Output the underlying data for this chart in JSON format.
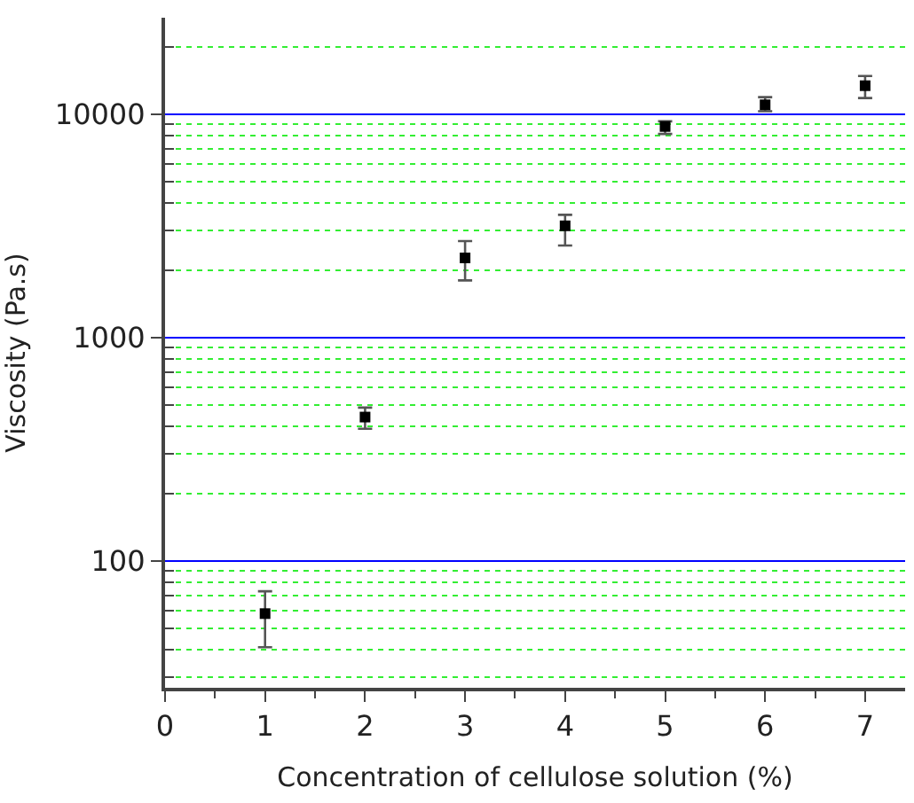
{
  "chart_data": {
    "type": "scatter",
    "xlabel": "Concentration of cellulose solution (%)",
    "ylabel": "Viscosity (Pa.s)",
    "x": [
      1,
      2,
      3,
      4,
      5,
      6,
      7
    ],
    "series": [
      {
        "color": "#000000",
        "values": [
          58,
          440,
          2270,
          3160,
          8800,
          11000,
          13400
        ],
        "errors": [
          [
            41,
            73
          ],
          [
            390,
            485
          ],
          [
            1800,
            2700
          ],
          [
            2580,
            3540
          ],
          [
            8150,
            9280
          ],
          [
            10300,
            11900
          ],
          [
            11800,
            14800
          ]
        ]
      }
    ],
    "xlim": [
      0,
      7.4
    ],
    "xticks": [
      0,
      1,
      2,
      3,
      4,
      5,
      6,
      7
    ],
    "ylim": [
      27,
      27000
    ],
    "yticks": [
      {
        "value": 30,
        "label": null
      },
      {
        "value": 40,
        "label": null
      },
      {
        "value": 50,
        "label": null
      },
      {
        "value": 60,
        "label": null
      },
      {
        "value": 70,
        "label": null
      },
      {
        "value": 80,
        "label": null
      },
      {
        "value": 90,
        "label": null
      },
      100,
      {
        "value": 200,
        "label": null
      },
      {
        "value": 300,
        "label": null
      },
      {
        "value": 400,
        "label": null
      },
      {
        "value": 500,
        "label": null
      },
      {
        "value": 600,
        "label": null
      },
      {
        "value": 700,
        "label": null
      },
      {
        "value": 800,
        "label": null
      },
      {
        "value": 900,
        "label": null
      },
      1000,
      {
        "value": 2000,
        "label": null
      },
      {
        "value": 3000,
        "label": null
      },
      {
        "value": 4000,
        "label": null
      },
      {
        "value": 5000,
        "label": null
      },
      {
        "value": 6000,
        "label": null
      },
      {
        "value": 7000,
        "label": null
      },
      {
        "value": 8000,
        "label": null
      },
      {
        "value": 9000,
        "label": null
      },
      10000,
      {
        "value": 20000,
        "label": null
      }
    ],
    "log": "y",
    "grid": "y",
    "marker": "square",
    "legend": false
  }
}
